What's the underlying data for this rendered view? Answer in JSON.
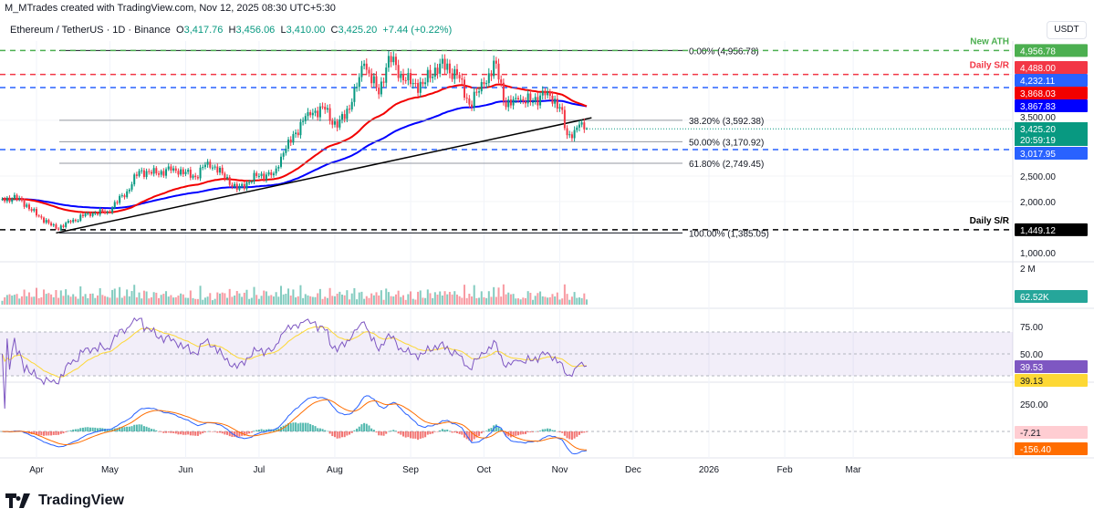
{
  "header": {
    "attribution": "M_MTrades created with TradingView.com, Nov 12, 2025 08:30 UTC+5:30",
    "symbol": "Ethereum / TetherUS · 1D · Binance",
    "open_label": "O",
    "open": "3,417.76",
    "high_label": "H",
    "high": "3,456.06",
    "low_label": "L",
    "low": "3,410.00",
    "close_label": "C",
    "close": "3,425.20",
    "change": "+7.44 (+0.22%)"
  },
  "currency": "USDT",
  "logo_text": "TradingView",
  "colors": {
    "up": "#089981",
    "down": "#f23645",
    "ema50": "#f20000",
    "ema100": "#0000ff",
    "rsi": "#7e57c2",
    "rsi_ma": "#fdd835",
    "macd": "#2962ff",
    "signal": "#ff6d00",
    "ath": "#4caf50",
    "sr": "#f23645",
    "blue_level": "#2962ff"
  },
  "chart_data": {
    "type": "candlestick",
    "title": "",
    "price_ticks": [
      "2,500.00",
      "2,000.00",
      "1,000.00"
    ],
    "price_tick_values": [
      2500,
      2000,
      1000
    ],
    "hidden_tick": "3,500.00",
    "time_ticks": [
      {
        "label": "Apr",
        "date": "2025-04-01"
      },
      {
        "label": "May",
        "date": "2025-05-01"
      },
      {
        "label": "Jun",
        "date": "2025-06-01"
      },
      {
        "label": "Jul",
        "date": "2025-07-01"
      },
      {
        "label": "Aug",
        "date": "2025-08-01"
      },
      {
        "label": "Sep",
        "date": "2025-09-01"
      },
      {
        "label": "Oct",
        "date": "2025-10-01"
      },
      {
        "label": "Nov",
        "date": "2025-11-01"
      },
      {
        "label": "Dec",
        "date": "2025-12-01"
      },
      {
        "label": "2026",
        "date": "2026-01-01"
      },
      {
        "label": "Feb",
        "date": "2026-02-01"
      },
      {
        "label": "Mar",
        "date": "2026-03-01"
      }
    ],
    "close_path": [
      [
        "2025-03-18",
        2050
      ],
      [
        "2025-03-25",
        2070
      ],
      [
        "2025-03-30",
        1820
      ],
      [
        "2025-04-06",
        1580
      ],
      [
        "2025-04-09",
        1470
      ],
      [
        "2025-04-15",
        1600
      ],
      [
        "2025-04-22",
        1770
      ],
      [
        "2025-04-30",
        1800
      ],
      [
        "2025-05-08",
        2200
      ],
      [
        "2025-05-13",
        2600
      ],
      [
        "2025-05-20",
        2550
      ],
      [
        "2025-05-27",
        2650
      ],
      [
        "2025-06-05",
        2480
      ],
      [
        "2025-06-10",
        2780
      ],
      [
        "2025-06-16",
        2550
      ],
      [
        "2025-06-22",
        2230
      ],
      [
        "2025-06-30",
        2500
      ],
      [
        "2025-07-07",
        2550
      ],
      [
        "2025-07-11",
        2950
      ],
      [
        "2025-07-16",
        3350
      ],
      [
        "2025-07-21",
        3750
      ],
      [
        "2025-07-28",
        3800
      ],
      [
        "2025-08-02",
        3450
      ],
      [
        "2025-08-08",
        3950
      ],
      [
        "2025-08-13",
        4700
      ],
      [
        "2025-08-19",
        4100
      ],
      [
        "2025-08-23",
        4850
      ],
      [
        "2025-08-28",
        4500
      ],
      [
        "2025-09-01",
        4300
      ],
      [
        "2025-09-06",
        4300
      ],
      [
        "2025-09-13",
        4700
      ],
      [
        "2025-09-20",
        4480
      ],
      [
        "2025-09-25",
        3900
      ],
      [
        "2025-10-01",
        4300
      ],
      [
        "2025-10-06",
        4700
      ],
      [
        "2025-10-10",
        3850
      ],
      [
        "2025-10-15",
        4000
      ],
      [
        "2025-10-20",
        3950
      ],
      [
        "2025-10-27",
        4150
      ],
      [
        "2025-11-01",
        3850
      ],
      [
        "2025-11-04",
        3300
      ],
      [
        "2025-11-07",
        3400
      ],
      [
        "2025-11-10",
        3550
      ],
      [
        "2025-11-12",
        3425.2
      ]
    ],
    "indicators": [
      "EMA 50",
      "EMA 100",
      "Volume",
      "RSI 14",
      "MACD 12 26 9"
    ],
    "fibonacci": [
      {
        "label": "0.00% (4,956.78)",
        "price": 4956.78
      },
      {
        "label": "38.20% (3,592.38)",
        "price": 3592.38
      },
      {
        "label": "50.00% (3,170.92)",
        "price": 3170.92
      },
      {
        "label": "61.80% (2,749.45)",
        "price": 2749.45
      },
      {
        "label": "100.00% (1,385.05)",
        "price": 1385.05
      }
    ],
    "trendline": [
      [
        "2025-04-09",
        1385.05
      ],
      [
        "2025-11-14",
        3640
      ]
    ],
    "levels": [
      {
        "name": "New ATH",
        "price": 4956.78,
        "label": "4,956.78",
        "color": "#4caf50",
        "text": "New ATH"
      },
      {
        "name": "Daily S/R",
        "price": 4488.0,
        "label": "4,488.00",
        "color": "#f23645",
        "text": "Daily S/R"
      },
      {
        "name": "blue-level-upper",
        "price": 4232.11,
        "label": "4,232.11",
        "color": "#2962ff",
        "text": ""
      },
      {
        "name": "blue-level-lower",
        "price": 3017.95,
        "label": "3,017.95",
        "color": "#2962ff",
        "text": ""
      },
      {
        "name": "Daily S/R low",
        "price": 1449.12,
        "label": "1,449.12",
        "color": "#000000",
        "text": "Daily S/R"
      }
    ],
    "ema50_label": "3,868.03",
    "ema100_label": "3,867.83",
    "last_price_label": "3,425.20",
    "countdown": "20:59:19",
    "volume": {
      "tick": "2 M",
      "last": "62.52K"
    },
    "rsi": {
      "ticks": [
        "75.00",
        "50.00"
      ],
      "value": "39.53",
      "ma": "39.13",
      "band": [
        30,
        70
      ]
    },
    "macd": {
      "tick": "250.00",
      "histogram": "-7.21",
      "signal": "-156.40"
    }
  }
}
